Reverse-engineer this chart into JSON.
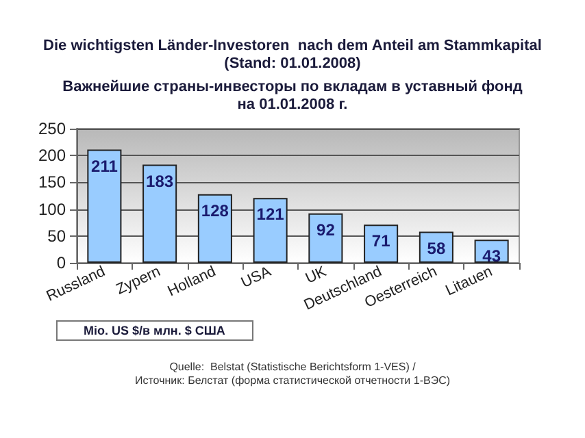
{
  "chart_data": {
    "type": "bar",
    "title": "Die wichtigsten Länder-Investoren  nach dem Anteil am Stammkapital\n(Stand: 01.01.2008)",
    "subtitle": "Важнейшие страны-инвесторы по вкладам в уставный фонд\nна 01.01.2008 г.",
    "annotations": [
      "Mio. US $/в млн. $ США",
      "Quelle:  Belstat (Statistische Berichtsform 1-VES) /\nИсточник: Белстат (форма статистической отчетности 1-ВЭС)"
    ],
    "categories": [
      "Russland",
      "Zypern",
      "Holland",
      "USA",
      "UK",
      "Deutschland",
      "Oesterreich",
      "Litauen"
    ],
    "values": [
      211,
      183,
      128,
      121,
      92,
      71,
      58,
      43
    ],
    "color": "#99ccff",
    "ylim": [
      0,
      250
    ],
    "yticks": [
      0,
      50,
      100,
      150,
      200,
      250
    ],
    "grid": "y",
    "data_labels": true
  }
}
